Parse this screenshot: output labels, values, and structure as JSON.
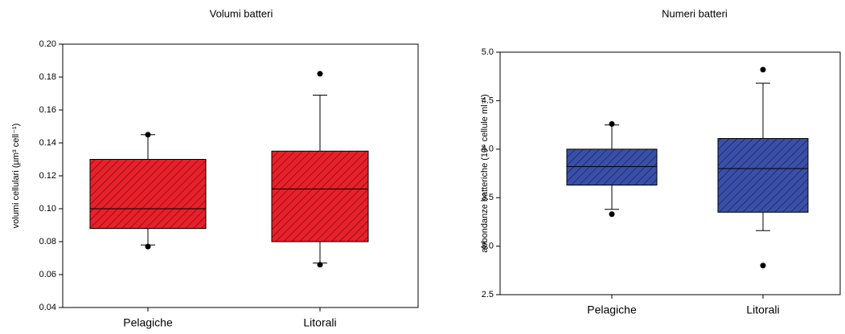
{
  "chart_data": [
    {
      "type": "box",
      "title": "Volumi batteri",
      "y_label": "volumi cellulari (µm³ cell⁻¹)",
      "categories": [
        "Pelagiche",
        "Litorali"
      ],
      "series": [
        {
          "color": "#e8202a",
          "hatch": "#5a0b0b",
          "whisker_low": [
            0.078,
            0.067
          ],
          "q1": [
            0.088,
            0.08
          ],
          "median": [
            0.1,
            0.112
          ],
          "q3": [
            0.13,
            0.135
          ],
          "whisker_high": [
            0.145,
            0.169
          ],
          "outliers": [
            [
              0.077,
              0.145
            ],
            [
              0.066,
              0.182
            ]
          ]
        }
      ],
      "ylim": [
        0.04,
        0.2
      ],
      "yticks": [
        0.04,
        0.06,
        0.08,
        {
          "value": 0.1,
          "label": "0.10"
        },
        0.12,
        0.14,
        0.16,
        0.18,
        {
          "value": 0.2,
          "label": "0.20"
        }
      ]
    },
    {
      "type": "box",
      "title": "Numeri batteri",
      "y_label": "abbondanze batteriche (10⁶ cellule ml⁻¹)",
      "categories": [
        "Pelagiche",
        "Litorali"
      ],
      "series": [
        {
          "color": "#3a4fa8",
          "hatch": "#0f1a45",
          "whisker_low": [
            3.38,
            3.16
          ],
          "q1": [
            3.63,
            3.35
          ],
          "median": [
            3.82,
            3.8
          ],
          "q3": [
            4.0,
            4.11
          ],
          "whisker_high": [
            4.25,
            4.68
          ],
          "outliers": [
            [
              3.33,
              4.26
            ],
            [
              2.8,
              4.82
            ]
          ]
        }
      ],
      "ylim": [
        2.5,
        5.0
      ],
      "yticks": [
        2.5,
        {
          "value": 3.0,
          "label": "3.0"
        },
        3.5,
        {
          "value": 4.0,
          "label": "4.0"
        },
        4.5,
        {
          "value": 5.0,
          "label": "5.0"
        }
      ]
    }
  ]
}
